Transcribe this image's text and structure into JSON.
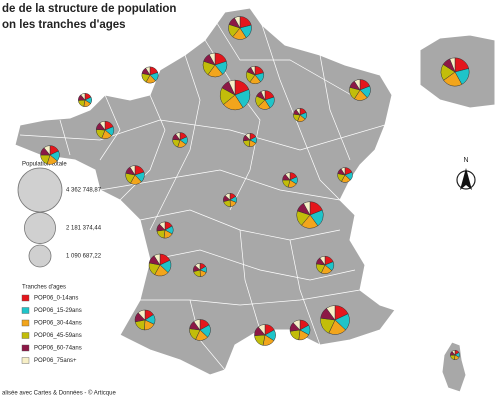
{
  "title_lines": [
    "de de la structure de population",
    "on les tranches d'ages"
  ],
  "legend_size": {
    "title": "Population totale",
    "levels": [
      {
        "value": 4362748.87,
        "label": "4 362 748,87"
      },
      {
        "value": 2181374.44,
        "label": "2 181 374,44"
      },
      {
        "value": 1090687.22,
        "label": "1 090 687,22"
      }
    ]
  },
  "legend_ages": {
    "title": "Tranches d'ages",
    "items": [
      {
        "name": "POP06_0-14ans",
        "color": "#e4161c"
      },
      {
        "name": "POP06_15-29ans",
        "color": "#1fc4c9"
      },
      {
        "name": "POP06_30-44ans",
        "color": "#f2a51c"
      },
      {
        "name": "POP06_45-59ans",
        "color": "#c2bd0a"
      },
      {
        "name": "POP06_60-74ans",
        "color": "#8c1846"
      },
      {
        "name": "POP06_75ans+",
        "color": "#f7efc6"
      }
    ]
  },
  "pies": [
    {
      "population": 2000000,
      "shares": [
        19,
        22,
        23,
        19,
        10,
        7
      ]
    },
    {
      "population": 1300000,
      "shares": [
        20,
        19,
        21,
        20,
        12,
        8
      ]
    },
    {
      "population": 1200000,
      "shares": [
        21,
        20,
        20,
        19,
        12,
        8
      ]
    },
    {
      "population": 800000,
      "shares": [
        20,
        21,
        22,
        19,
        11,
        7
      ]
    },
    {
      "population": 700000,
      "shares": [
        21,
        18,
        21,
        21,
        11,
        8
      ]
    },
    {
      "population": 1000000,
      "shares": [
        19,
        19,
        21,
        20,
        12,
        9
      ]
    },
    {
      "population": 1600000,
      "shares": [
        19,
        21,
        21,
        19,
        12,
        8
      ]
    },
    {
      "population": 1900000,
      "shares": [
        18,
        19,
        20,
        20,
        13,
        10
      ]
    },
    {
      "population": 900000,
      "shares": [
        17,
        16,
        19,
        21,
        15,
        12
      ]
    },
    {
      "population": 1000000,
      "shares": [
        17,
        17,
        19,
        21,
        15,
        11
      ]
    },
    {
      "population": 1100000,
      "shares": [
        18,
        19,
        21,
        20,
        13,
        9
      ]
    },
    {
      "population": 800000,
      "shares": [
        20,
        18,
        20,
        20,
        13,
        9
      ]
    },
    {
      "population": 600000,
      "shares": [
        17,
        16,
        19,
        21,
        15,
        12
      ]
    },
    {
      "population": 700000,
      "shares": [
        19,
        17,
        20,
        20,
        14,
        10
      ]
    },
    {
      "population": 800000,
      "shares": [
        18,
        18,
        19,
        20,
        14,
        11
      ]
    },
    {
      "population": 1000000,
      "shares": [
        17,
        20,
        20,
        20,
        13,
        10
      ]
    },
    {
      "population": 700000,
      "shares": [
        19,
        17,
        21,
        20,
        13,
        10
      ]
    },
    {
      "population": 500000,
      "shares": [
        18,
        16,
        20,
        21,
        14,
        11
      ]
    },
    {
      "population": 500000,
      "shares": [
        18,
        17,
        20,
        21,
        14,
        10
      ]
    },
    {
      "population": 900000,
      "shares": [
        16,
        16,
        19,
        21,
        16,
        12
      ]
    },
    {
      "population": 400000,
      "shares": [
        16,
        15,
        18,
        22,
        16,
        13
      ]
    },
    {
      "population": 500000,
      "shares": [
        19,
        18,
        21,
        20,
        13,
        9
      ]
    },
    {
      "population": 400000,
      "shares": [
        19,
        17,
        20,
        21,
        13,
        10
      ]
    },
    {
      "population": 400000,
      "shares": [
        17,
        16,
        19,
        21,
        15,
        12
      ]
    },
    {
      "population": 400000,
      "shares": [
        16,
        15,
        18,
        22,
        16,
        13
      ]
    },
    {
      "population": 1800000,
      "shares": [
        21,
        21,
        23,
        19,
        10,
        6
      ]
    },
    {
      "population": 200000,
      "shares": [
        16,
        17,
        19,
        22,
        15,
        11
      ]
    },
    {
      "population": 400000,
      "shares": [
        18,
        16,
        19,
        21,
        15,
        11
      ]
    },
    {
      "population": 600000,
      "shares": [
        20,
        18,
        20,
        20,
        13,
        9
      ]
    }
  ],
  "north": "N",
  "footer": "alisée avec Cartes & Données - © Articque"
}
